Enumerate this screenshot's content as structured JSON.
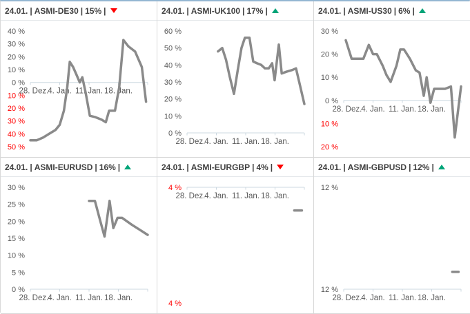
{
  "labels": {
    "sep": "|"
  },
  "colors": {
    "line": "#8a8a8a",
    "axis": "#ccd8e0",
    "tick_text": "#595959",
    "negative_text": "#ff0000",
    "header_text": "#404040",
    "trend_up": "#00a478",
    "trend_down": "#ff0000",
    "panel_border": "#d7d7d7",
    "outer_top_border": "#94b6d2"
  },
  "x_axis": {
    "tick_days": [
      0,
      7,
      14,
      21,
      28
    ],
    "labels": [
      {
        "label": "28. Dez.",
        "day": 0.8
      },
      {
        "label": "4. Jan.",
        "day": 7
      },
      {
        "label": "11. Jan.",
        "day": 14
      },
      {
        "label": "18. Jan.",
        "day": 21
      }
    ]
  },
  "chart_data": [
    {
      "id": "asmi-de30",
      "type": "line",
      "header": {
        "date": "24.01.",
        "name": "ASMI-DE30",
        "value": "15%",
        "trend": "down"
      },
      "ylim": [
        40,
        -50
      ],
      "axis_value": 0,
      "y_ticks": [
        {
          "label": "40 %",
          "value": 40,
          "red": false
        },
        {
          "label": "30 %",
          "value": 30,
          "red": false
        },
        {
          "label": "20 %",
          "value": 20,
          "red": false
        },
        {
          "label": "10 %",
          "value": 10,
          "red": false
        },
        {
          "label": "0 %",
          "value": 0,
          "red": false
        },
        {
          "label": "10 %",
          "value": -10,
          "red": true
        },
        {
          "label": "20 %",
          "value": -20,
          "red": true
        },
        {
          "label": "30 %",
          "value": -30,
          "red": true
        },
        {
          "label": "40 %",
          "value": -40,
          "red": true
        },
        {
          "label": "50 %",
          "value": -50,
          "red": true
        }
      ],
      "series": [
        [
          0,
          -45
        ],
        [
          1.5,
          -45
        ],
        [
          3,
          -43
        ],
        [
          4.5,
          -40
        ],
        [
          6,
          -37
        ],
        [
          7,
          -33
        ],
        [
          8,
          -22
        ],
        [
          8.8,
          -4
        ],
        [
          9.4,
          16
        ],
        [
          10.2,
          12
        ],
        [
          11,
          6
        ],
        [
          11.8,
          0
        ],
        [
          12.4,
          4
        ],
        [
          13.2,
          -8
        ],
        [
          14.2,
          -26
        ],
        [
          15.5,
          -27
        ],
        [
          17,
          -29
        ],
        [
          18,
          -31
        ],
        [
          18.8,
          -22
        ],
        [
          20.2,
          -22
        ],
        [
          21.2,
          -4
        ],
        [
          22.2,
          33
        ],
        [
          23.4,
          28
        ],
        [
          25,
          24
        ],
        [
          26.6,
          12
        ],
        [
          27.6,
          -15
        ]
      ]
    },
    {
      "id": "asmi-uk100",
      "type": "line",
      "header": {
        "date": "24.01.",
        "name": "ASMI-UK100",
        "value": "17%",
        "trend": "up"
      },
      "ylim": [
        60,
        0
      ],
      "axis_value": 0,
      "y_ticks": [
        {
          "label": "60 %",
          "value": 60,
          "red": false
        },
        {
          "label": "50 %",
          "value": 50,
          "red": false
        },
        {
          "label": "40 %",
          "value": 40,
          "red": false
        },
        {
          "label": "30 %",
          "value": 30,
          "red": false
        },
        {
          "label": "20 %",
          "value": 20,
          "red": false
        },
        {
          "label": "10 %",
          "value": 10,
          "red": false
        },
        {
          "label": "0 %",
          "value": 0,
          "red": false
        }
      ],
      "series": [
        [
          7.4,
          48
        ],
        [
          8.4,
          50
        ],
        [
          9.3,
          43
        ],
        [
          10.2,
          33
        ],
        [
          11.2,
          23
        ],
        [
          12.1,
          37
        ],
        [
          13,
          50
        ],
        [
          13.8,
          56
        ],
        [
          14.9,
          56
        ],
        [
          15.8,
          42
        ],
        [
          16.7,
          41
        ],
        [
          17.7,
          40
        ],
        [
          18.6,
          38
        ],
        [
          19.5,
          38
        ],
        [
          20.3,
          41
        ],
        [
          20.9,
          31
        ],
        [
          21.9,
          52
        ],
        [
          22.6,
          35
        ],
        [
          23.7,
          36
        ],
        [
          25.1,
          37
        ],
        [
          26,
          38
        ],
        [
          28,
          17
        ]
      ]
    },
    {
      "id": "asmi-us30",
      "type": "line",
      "header": {
        "date": "24.01.",
        "name": "ASMI-US30",
        "value": "6%",
        "trend": "up"
      },
      "ylim": [
        30,
        -20
      ],
      "axis_value": 0,
      "y_ticks": [
        {
          "label": "30 %",
          "value": 30,
          "red": false
        },
        {
          "label": "20 %",
          "value": 20,
          "red": false
        },
        {
          "label": "10 %",
          "value": 10,
          "red": false
        },
        {
          "label": "0 %",
          "value": 0,
          "red": false
        },
        {
          "label": "10 %",
          "value": -10,
          "red": true
        },
        {
          "label": "20 %",
          "value": -20,
          "red": true
        }
      ],
      "series": [
        [
          0.5,
          26
        ],
        [
          1.9,
          18
        ],
        [
          3.3,
          18
        ],
        [
          4.7,
          18
        ],
        [
          6,
          24
        ],
        [
          7,
          20
        ],
        [
          7.9,
          20
        ],
        [
          9.3,
          15
        ],
        [
          10.2,
          11
        ],
        [
          11.2,
          8
        ],
        [
          12.6,
          15
        ],
        [
          13.5,
          22
        ],
        [
          14.4,
          22
        ],
        [
          15.8,
          18
        ],
        [
          17.2,
          13
        ],
        [
          18.1,
          12
        ],
        [
          19.1,
          2
        ],
        [
          19.8,
          10
        ],
        [
          20.7,
          -1
        ],
        [
          21.6,
          5
        ],
        [
          22.8,
          5
        ],
        [
          24.2,
          5
        ],
        [
          25.6,
          6
        ],
        [
          26.5,
          -16
        ],
        [
          28,
          6
        ]
      ]
    },
    {
      "id": "asmi-eurusd",
      "type": "line",
      "header": {
        "date": "24.01.",
        "name": "ASMI-EURUSD",
        "value": "16%",
        "trend": "up"
      },
      "ylim": [
        30,
        0
      ],
      "axis_value": 0,
      "y_ticks": [
        {
          "label": "30 %",
          "value": 30,
          "red": false
        },
        {
          "label": "25 %",
          "value": 25,
          "red": false
        },
        {
          "label": "20 %",
          "value": 20,
          "red": false
        },
        {
          "label": "15 %",
          "value": 15,
          "red": false
        },
        {
          "label": "10 %",
          "value": 10,
          "red": false
        },
        {
          "label": "5 %",
          "value": 5,
          "red": false
        },
        {
          "label": "0 %",
          "value": 0,
          "red": false
        }
      ],
      "series": [
        [
          14,
          26
        ],
        [
          15.4,
          26
        ],
        [
          16.7,
          20
        ],
        [
          17.7,
          15.5
        ],
        [
          18.9,
          26
        ],
        [
          19.8,
          18
        ],
        [
          20.8,
          21
        ],
        [
          21.9,
          21
        ],
        [
          24.2,
          19
        ],
        [
          26.1,
          17.5
        ],
        [
          28,
          16
        ]
      ]
    },
    {
      "id": "asmi-eurgbp",
      "type": "line",
      "header": {
        "date": "24.01.",
        "name": "ASMI-EURGBP",
        "value": "4%",
        "trend": "down"
      },
      "ylim": [
        -4,
        -4.1
      ],
      "axis_value": -4,
      "y_ticks": [
        {
          "label": "4 %",
          "value": -4,
          "red": true
        },
        {
          "label": "4 %",
          "value": -4.1,
          "red": true
        }
      ],
      "series": [
        [
          25.6,
          -4.02
        ],
        [
          27.4,
          -4.02
        ]
      ]
    },
    {
      "id": "asmi-gbpusd",
      "type": "line",
      "header": {
        "date": "24.01.",
        "name": "ASMI-GBPUSD",
        "value": "12%",
        "trend": "up"
      },
      "ylim": [
        12,
        11.9
      ],
      "axis_value": 11.9,
      "y_ticks": [
        {
          "label": "12 %",
          "value": 12,
          "red": false
        },
        {
          "label": "12 %",
          "value": 11.9,
          "red": false
        }
      ],
      "series": [
        [
          25.9,
          11.917
        ],
        [
          27.4,
          11.917
        ]
      ]
    }
  ]
}
